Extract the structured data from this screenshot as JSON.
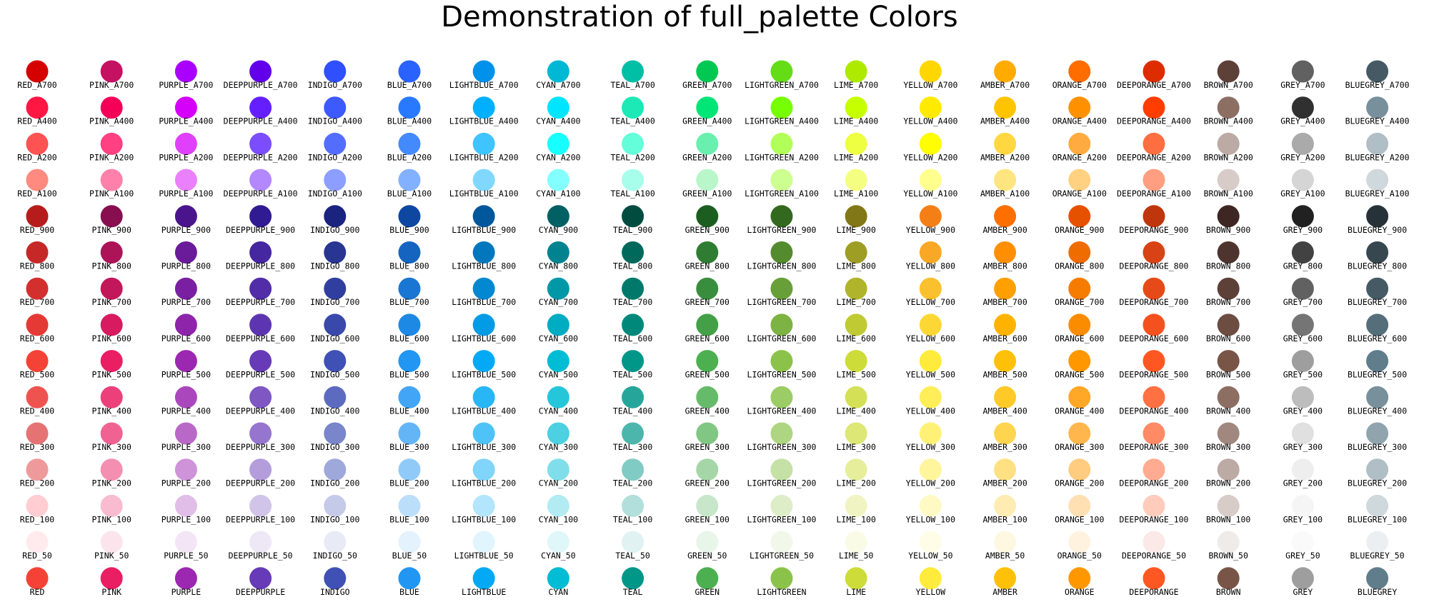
{
  "chart_data": {
    "type": "swatch-grid",
    "title": "Demonstration of full_palette Colors",
    "families": [
      "RED",
      "PINK",
      "PURPLE",
      "DEEPPURPLE",
      "INDIGO",
      "BLUE",
      "LIGHTBLUE",
      "CYAN",
      "TEAL",
      "GREEN",
      "LIGHTGREEN",
      "LIME",
      "YELLOW",
      "AMBER",
      "ORANGE",
      "DEEPORANGE",
      "BROWN",
      "GREY",
      "BLUEGREY"
    ],
    "shades": [
      "A700",
      "A400",
      "A200",
      "A100",
      "900",
      "800",
      "700",
      "600",
      "500",
      "400",
      "300",
      "200",
      "100",
      "50",
      ""
    ],
    "colors": {
      "RED": [
        "#d50000",
        "#ff1744",
        "#ff5252",
        "#ff8a80",
        "#b71c1c",
        "#c62828",
        "#d32f2f",
        "#e53935",
        "#f44336",
        "#ef5350",
        "#e57373",
        "#ef9a9a",
        "#ffcdd2",
        "#ffebee",
        "#f44336"
      ],
      "PINK": [
        "#c51162",
        "#f50057",
        "#ff4081",
        "#ff80ab",
        "#880e4f",
        "#ad1457",
        "#c2185b",
        "#d81b60",
        "#e91e63",
        "#ec407a",
        "#f06292",
        "#f48fb1",
        "#f8bbd0",
        "#fce4ec",
        "#e91e63"
      ],
      "PURPLE": [
        "#aa00ff",
        "#d500f9",
        "#e040fb",
        "#ea80fc",
        "#4a148c",
        "#6a1b9a",
        "#7b1fa2",
        "#8e24aa",
        "#9c27b0",
        "#ab47bc",
        "#ba68c8",
        "#ce93d8",
        "#e1bee7",
        "#f3e5f5",
        "#9c27b0"
      ],
      "DEEPPURPLE": [
        "#6200ea",
        "#651fff",
        "#7c4dff",
        "#b388ff",
        "#311b92",
        "#4527a0",
        "#512da8",
        "#5e35b1",
        "#673ab7",
        "#7e57c2",
        "#9575cd",
        "#b39ddb",
        "#d1c4e9",
        "#ede7f6",
        "#673ab7"
      ],
      "INDIGO": [
        "#304ffe",
        "#3d5afe",
        "#536dfe",
        "#8c9eff",
        "#1a237e",
        "#283593",
        "#303f9f",
        "#3949ab",
        "#3f51b5",
        "#5c6bc0",
        "#7986cb",
        "#9fa8da",
        "#c5cae9",
        "#e8eaf6",
        "#3f51b5"
      ],
      "BLUE": [
        "#2962ff",
        "#2979ff",
        "#448aff",
        "#82b1ff",
        "#0d47a1",
        "#1565c0",
        "#1976d2",
        "#1e88e5",
        "#2196f3",
        "#42a5f5",
        "#64b5f6",
        "#90caf9",
        "#bbdefb",
        "#e3f2fd",
        "#2196f3"
      ],
      "LIGHTBLUE": [
        "#0091ea",
        "#00b0ff",
        "#40c4ff",
        "#80d8ff",
        "#01579b",
        "#0277bd",
        "#0288d1",
        "#039be5",
        "#03a9f4",
        "#29b6f6",
        "#4fc3f7",
        "#81d4fa",
        "#b3e5fc",
        "#e1f5fe",
        "#03a9f4"
      ],
      "CYAN": [
        "#00b8d4",
        "#00e5ff",
        "#18ffff",
        "#84ffff",
        "#006064",
        "#00838f",
        "#0097a7",
        "#00acc1",
        "#00bcd4",
        "#26c6da",
        "#4dd0e1",
        "#80deea",
        "#b2ebf2",
        "#e0f7fa",
        "#00bcd4"
      ],
      "TEAL": [
        "#00bfa5",
        "#1de9b6",
        "#64ffda",
        "#a7ffeb",
        "#004d40",
        "#00695c",
        "#00796b",
        "#00897b",
        "#009688",
        "#26a69a",
        "#4db6ac",
        "#80cbc4",
        "#b2dfdb",
        "#e0f2f1",
        "#009688"
      ],
      "GREEN": [
        "#00c853",
        "#00e676",
        "#69f0ae",
        "#b9f6ca",
        "#1b5e20",
        "#2e7d32",
        "#388e3c",
        "#43a047",
        "#4caf50",
        "#66bb6a",
        "#81c784",
        "#a5d6a7",
        "#c8e6c9",
        "#e8f5e9",
        "#4caf50"
      ],
      "LIGHTGREEN": [
        "#64dd17",
        "#76ff03",
        "#b2ff59",
        "#ccff90",
        "#33691e",
        "#558b2f",
        "#689f38",
        "#7cb342",
        "#8bc34a",
        "#9ccc65",
        "#aed581",
        "#c5e1a5",
        "#dcedc8",
        "#f1f8e9",
        "#8bc34a"
      ],
      "LIME": [
        "#aeea00",
        "#c6ff00",
        "#eeff41",
        "#f4ff81",
        "#827717",
        "#9e9d24",
        "#afb42b",
        "#c0ca33",
        "#cddc39",
        "#d4e157",
        "#dce775",
        "#e6ee9c",
        "#f0f4c3",
        "#f9fbe7",
        "#cddc39"
      ],
      "YELLOW": [
        "#ffd600",
        "#ffea00",
        "#ffff00",
        "#ffff8d",
        "#f57f17",
        "#f9a825",
        "#fbc02d",
        "#fdd835",
        "#ffeb3b",
        "#ffee58",
        "#fff176",
        "#fff59d",
        "#fff9c4",
        "#fffde7",
        "#ffeb3b"
      ],
      "AMBER": [
        "#ffab00",
        "#ffc400",
        "#ffd740",
        "#ffe57f",
        "#ff6f00",
        "#ff8f00",
        "#ffa000",
        "#ffb300",
        "#ffc107",
        "#ffca28",
        "#ffd54f",
        "#ffe082",
        "#ffecb3",
        "#fff8e1",
        "#ffc107"
      ],
      "ORANGE": [
        "#ff6d00",
        "#ff9100",
        "#ffab40",
        "#ffd180",
        "#e65100",
        "#ef6c00",
        "#f57c00",
        "#fb8c00",
        "#ff9800",
        "#ffa726",
        "#ffb74d",
        "#ffcc80",
        "#ffe0b2",
        "#fff3e0",
        "#ff9800"
      ],
      "DEEPORANGE": [
        "#dd2c00",
        "#ff3d00",
        "#ff6e40",
        "#ff9e80",
        "#bf360c",
        "#d84315",
        "#e64a19",
        "#f4511e",
        "#ff5722",
        "#ff7043",
        "#ff8a65",
        "#ffab91",
        "#ffccbc",
        "#fbe9e7",
        "#ff5722"
      ],
      "BROWN": [
        "#5d4037",
        "#8d6e63",
        "#bcaaa4",
        "#d7ccc8",
        "#3e2723",
        "#4e342e",
        "#5d4037",
        "#6d4c41",
        "#795548",
        "#8d6e63",
        "#a1887f",
        "#bcaaa4",
        "#d7ccc8",
        "#efebe9",
        "#795548"
      ],
      "GREY": [
        "#616161",
        "#303030",
        "#aaaaaa",
        "#d5d5d5",
        "#212121",
        "#424242",
        "#616161",
        "#757575",
        "#9e9e9e",
        "#bdbdbd",
        "#e0e0e0",
        "#eeeeee",
        "#f5f5f5",
        "#fafafa",
        "#9e9e9e"
      ],
      "BLUEGREY": [
        "#455a64",
        "#78909c",
        "#b0bec5",
        "#cfd8dc",
        "#263238",
        "#37474f",
        "#455a64",
        "#546e7a",
        "#607d8b",
        "#78909c",
        "#90a4ae",
        "#b0bec5",
        "#cfd8dc",
        "#eceff1",
        "#607d8b"
      ]
    }
  }
}
